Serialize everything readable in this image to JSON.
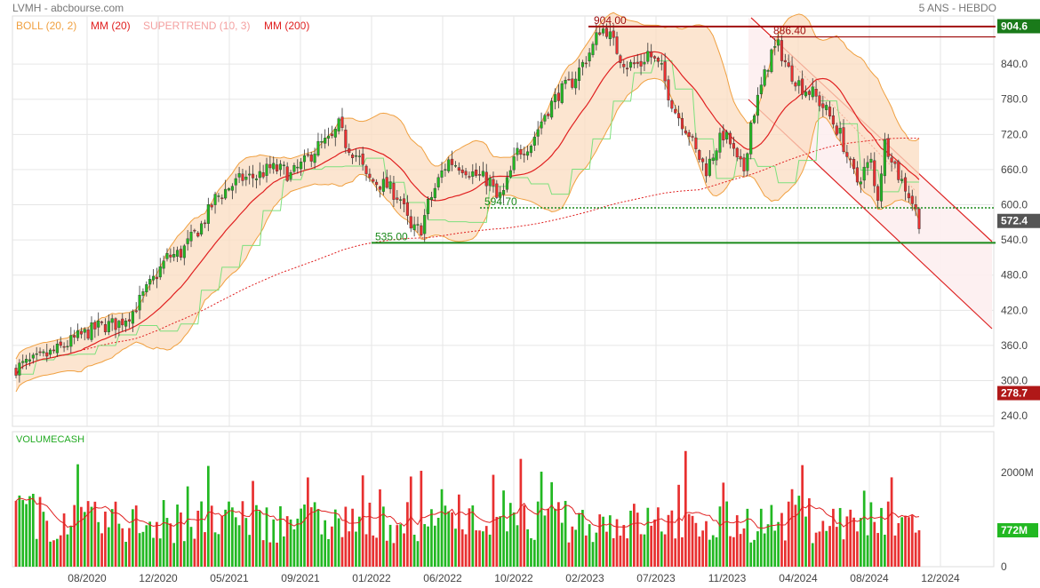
{
  "header": {
    "title": "LVMH - abcbourse.com",
    "period": "5 ANS - HEBDO"
  },
  "legend": [
    {
      "label": "BOLL (20, 2)",
      "color": "#f0a040"
    },
    {
      "label": "MM (20)",
      "color": "#e02020"
    },
    {
      "label": "SUPERTREND (10, 3)",
      "color": "#f4a0a0"
    },
    {
      "label": "MM (200)",
      "color": "#e02020"
    }
  ],
  "volume_title": "VOLUMECASH",
  "colors": {
    "up": "#22b822",
    "down": "#e83030",
    "boll_fill": "#fbdcc0",
    "boll_line": "#f0a040",
    "ma": "#e02020",
    "grid": "#e6e6e6",
    "support": "#1a8a1a",
    "resistance": "#a01010",
    "current": "#555555",
    "low_marker": "#b01818",
    "vol_up": "#22b822",
    "vol_down": "#e83030"
  },
  "chart_data": [
    {
      "type": "candlestick",
      "title": "LVMH",
      "period": "5 ANS - HEBDO",
      "y_axis": {
        "ticks": [
          240,
          300,
          360,
          420,
          480,
          540,
          600,
          660,
          720,
          780,
          840
        ],
        "ylim": [
          222,
          922
        ]
      },
      "x_axis": {
        "ticks": [
          "08/2020",
          "12/2020",
          "05/2021",
          "09/2021",
          "01/2022",
          "06/2022",
          "10/2022",
          "02/2023",
          "07/2023",
          "11/2023",
          "04/2024",
          "08/2024",
          "12/2024"
        ]
      },
      "price_path": [
        [
          0,
          322
        ],
        [
          6,
          335
        ],
        [
          12,
          352
        ],
        [
          18,
          374
        ],
        [
          24,
          392
        ],
        [
          30,
          398
        ],
        [
          34,
          418
        ],
        [
          40,
          472
        ],
        [
          44,
          510
        ],
        [
          48,
          518
        ],
        [
          54,
          565
        ],
        [
          58,
          610
        ],
        [
          62,
          630
        ],
        [
          66,
          645
        ],
        [
          70,
          648
        ],
        [
          74,
          662
        ],
        [
          78,
          658
        ],
        [
          80,
          650
        ],
        [
          84,
          672
        ],
        [
          88,
          700
        ],
        [
          92,
          712
        ],
        [
          94,
          735
        ],
        [
          96,
          705
        ],
        [
          100,
          678
        ],
        [
          102,
          645
        ],
        [
          104,
          640
        ],
        [
          108,
          632
        ],
        [
          112,
          610
        ],
        [
          115,
          555
        ],
        [
          118,
          560
        ],
        [
          120,
          600
        ],
        [
          124,
          655
        ],
        [
          126,
          675
        ],
        [
          130,
          665
        ],
        [
          134,
          650
        ],
        [
          138,
          640
        ],
        [
          140,
          610
        ],
        [
          142,
          620
        ],
        [
          146,
          690
        ],
        [
          150,
          705
        ],
        [
          154,
          755
        ],
        [
          158,
          790
        ],
        [
          162,
          810
        ],
        [
          165,
          840
        ],
        [
          168,
          870
        ],
        [
          170,
          900
        ],
        [
          172,
          898
        ],
        [
          176,
          852
        ],
        [
          178,
          838
        ],
        [
          182,
          840
        ],
        [
          184,
          860
        ],
        [
          188,
          830
        ],
        [
          190,
          790
        ],
        [
          192,
          760
        ],
        [
          196,
          722
        ],
        [
          198,
          690
        ],
        [
          201,
          660
        ],
        [
          204,
          700
        ],
        [
          206,
          720
        ],
        [
          208,
          705
        ],
        [
          210,
          672
        ],
        [
          212,
          660
        ],
        [
          214,
          740
        ],
        [
          217,
          800
        ],
        [
          220,
          860
        ],
        [
          222,
          870
        ],
        [
          225,
          830
        ],
        [
          229,
          800
        ],
        [
          232,
          790
        ],
        [
          236,
          760
        ],
        [
          240,
          720
        ],
        [
          243,
          665
        ],
        [
          245,
          640
        ],
        [
          247,
          660
        ],
        [
          249,
          672
        ],
        [
          250,
          630
        ],
        [
          251,
          615
        ],
        [
          253,
          705
        ],
        [
          255,
          685
        ],
        [
          257,
          650
        ],
        [
          259,
          630
        ],
        [
          261,
          605
        ],
        [
          263,
          572
        ]
      ],
      "annotations": [
        {
          "label": "904.00",
          "value": 904.0,
          "color": "#a01010"
        },
        {
          "label": "886.40",
          "value": 886.4,
          "color": "#a01010"
        },
        {
          "label": "594.70",
          "value": 594.7,
          "color": "#1a8a1a"
        },
        {
          "label": "535.00",
          "value": 535.0,
          "color": "#1a8a1a"
        }
      ],
      "price_badges": [
        {
          "label": "904.6",
          "value": 904.6,
          "color": "#1a7a1a"
        },
        {
          "label": "572.4",
          "value": 572.4,
          "color": "#555555"
        },
        {
          "label": "278.7",
          "value": 278.7,
          "color": "#b01818"
        }
      ],
      "indicators": [
        "BOLL (20, 2)",
        "MM (20)",
        "SUPERTREND (10, 3)",
        "MM (200)"
      ]
    },
    {
      "type": "bar",
      "title": "VOLUMECASH",
      "y_axis": {
        "ticks": [
          "0",
          "2000M"
        ],
        "values": [
          0,
          2000
        ]
      },
      "last_label": "772M",
      "last_value": 772
    }
  ]
}
